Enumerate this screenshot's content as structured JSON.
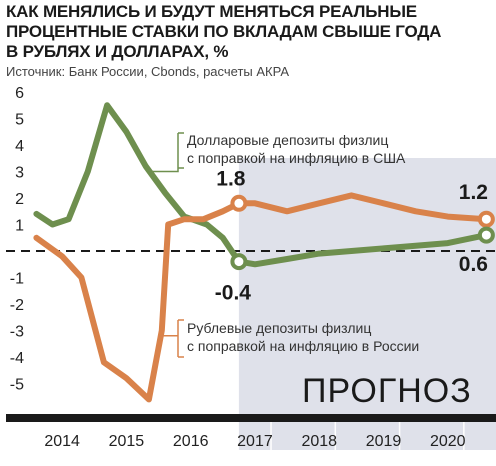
{
  "title_lines": [
    "КАК МЕНЯЛИСЬ И БУДУТ МЕНЯТЬСЯ РЕАЛЬНЫЕ",
    "ПРОЦЕНТНЫЕ СТАВКИ ПО ВКЛАДАМ СВЫШЕ ГОДА",
    "В РУБЛЯХ И ДОЛЛАРАХ, %"
  ],
  "source": "Источник: Банк России, Cbonds, расчеты АКРА",
  "colors": {
    "usd": "#6e8f4e",
    "rub": "#d9824a",
    "forecast_bg": "#dfe1ea",
    "axis": "#1a1a1a"
  },
  "chart_data": {
    "type": "line",
    "ylim": [
      -6,
      6
    ],
    "yticks": [
      6,
      5,
      4,
      3,
      2,
      1,
      0,
      -1,
      -2,
      -3,
      -4,
      -5
    ],
    "ytick_labels": [
      "6",
      "5",
      "4",
      "3",
      "2",
      "1",
      "",
      "-1",
      "-2",
      "-3",
      "-4",
      "-5"
    ],
    "xlim": [
      2013.5,
      2020.75
    ],
    "xticks": [
      2014,
      2015,
      2016,
      2017,
      2018,
      2019,
      2020
    ],
    "xtick_labels": [
      "2014",
      "2015",
      "2016",
      "2017",
      "2018",
      "2019",
      "2020"
    ],
    "forecast_start": 2016.75,
    "forecast_label": "ПРОГНОЗ",
    "series": [
      {
        "key": "usd",
        "name": "Долларовые депозиты физлиц с поправкой на инфляцию в США",
        "name_lines": [
          "Долларовые депозиты физлиц",
          "с поправкой на инфляцию в США"
        ],
        "x": [
          2013.6,
          2013.85,
          2014.1,
          2014.4,
          2014.7,
          2015.0,
          2015.3,
          2015.6,
          2015.9,
          2016.25,
          2016.5,
          2016.75,
          2017.0,
          2017.5,
          2018.0,
          2018.5,
          2019.0,
          2019.5,
          2020.0,
          2020.6
        ],
        "y": [
          1.4,
          1.0,
          1.2,
          3.0,
          5.5,
          4.5,
          3.2,
          2.2,
          1.3,
          1.0,
          0.5,
          -0.4,
          -0.5,
          -0.3,
          -0.1,
          0.0,
          0.1,
          0.2,
          0.3,
          0.6
        ]
      },
      {
        "key": "rub",
        "name": "Рублевые депозиты физлиц с поправкой на инфляцию в России",
        "name_lines": [
          "Рублевые депозиты физлиц",
          "с поправкой на инфляцию в России"
        ],
        "x": [
          2013.6,
          2014.0,
          2014.3,
          2014.65,
          2015.0,
          2015.35,
          2015.55,
          2015.65,
          2015.9,
          2016.2,
          2016.5,
          2016.75,
          2017.0,
          2017.5,
          2018.0,
          2018.5,
          2019.0,
          2019.5,
          2020.0,
          2020.6
        ],
        "y": [
          0.5,
          -0.2,
          -1.0,
          -4.2,
          -4.8,
          -5.6,
          -3.0,
          1.0,
          1.2,
          1.2,
          1.5,
          1.8,
          1.8,
          1.5,
          1.8,
          2.1,
          1.8,
          1.5,
          1.3,
          1.2
        ]
      }
    ],
    "annotations": [
      {
        "key": "usd_2017",
        "series": "usd",
        "x": 2016.75,
        "y": -0.4,
        "label": "-0.4"
      },
      {
        "key": "rub_2017",
        "series": "rub",
        "x": 2016.75,
        "y": 1.8,
        "label": "1.8"
      },
      {
        "key": "rub_2020",
        "series": "rub",
        "x": 2020.6,
        "y": 1.2,
        "label": "1.2"
      },
      {
        "key": "usd_2020",
        "series": "usd",
        "x": 2020.6,
        "y": 0.6,
        "label": "0.6"
      }
    ]
  }
}
